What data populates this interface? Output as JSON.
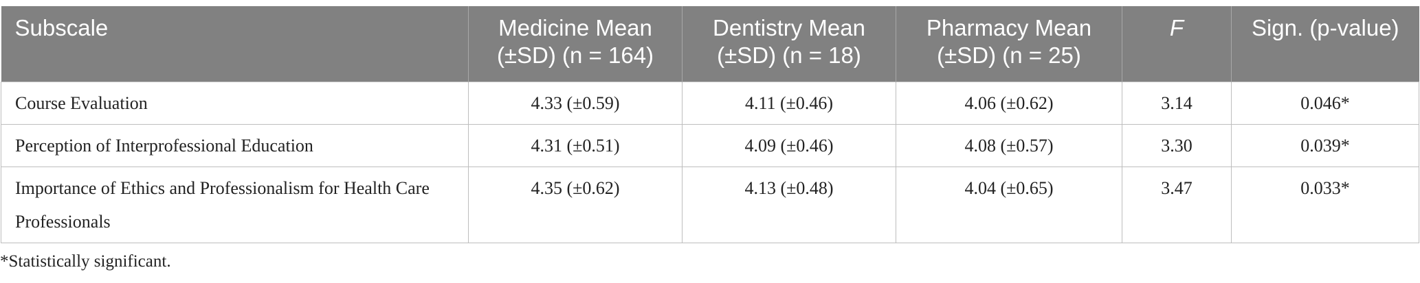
{
  "table": {
    "header": [
      "Subscale",
      "Medicine Mean (±SD) (n = 164)",
      "Dentistry Mean (±SD) (n = 18)",
      "Pharmacy Mean (±SD) (n = 25)",
      "F",
      "Sign. (p-value)"
    ],
    "rows": [
      [
        "Course Evaluation",
        "4.33 (±0.59)",
        "4.11 (±0.46)",
        "4.06 (±0.62)",
        "3.14",
        "0.046*"
      ],
      [
        "Perception of Interprofessional Education",
        "4.31 (±0.51)",
        "4.09 (±0.46)",
        "4.08 (±0.57)",
        "3.30",
        "0.039*"
      ],
      [
        "Importance of Ethics and Professionalism for Health Care Professionals",
        "4.35 (±0.62)",
        "4.13 (±0.48)",
        "4.04 (±0.65)",
        "3.47",
        "0.033*"
      ]
    ]
  },
  "footnote": "*Statistically significant."
}
